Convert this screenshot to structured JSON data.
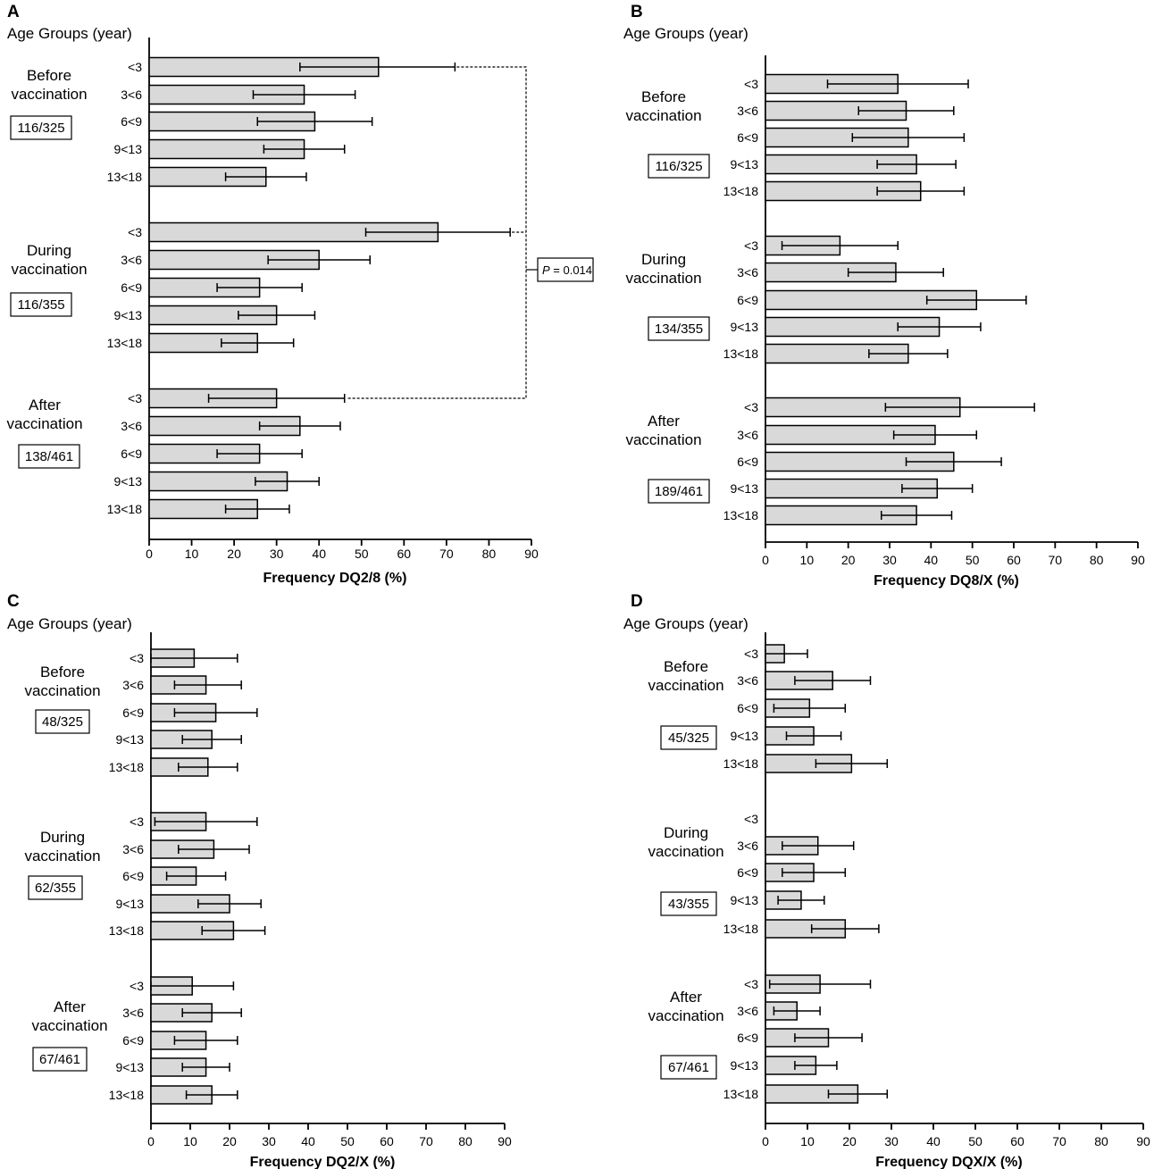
{
  "chart_data": [
    {
      "type": "bar",
      "orientation": "horizontal",
      "panel": "A",
      "ytitle": "Age Groups (year)",
      "xlabel": "Frequency DQ2/8 (%)",
      "xlim": [
        0,
        90
      ],
      "xticks": [
        0,
        10,
        20,
        30,
        40,
        50,
        60,
        70,
        80,
        90
      ],
      "groups": [
        {
          "label": [
            "Before",
            "vaccination"
          ],
          "ratio": "116/325",
          "categories": [
            "<3",
            "3<6",
            "6<9",
            "9<13",
            "13<18"
          ],
          "values": [
            54,
            36.5,
            39,
            36.5,
            27.5
          ],
          "err_low": [
            35.5,
            24.5,
            25.5,
            27,
            18
          ],
          "err_high": [
            72,
            48.5,
            52.5,
            46,
            37
          ]
        },
        {
          "label": [
            "During",
            "vaccination"
          ],
          "ratio": "116/355",
          "categories": [
            "<3",
            "3<6",
            "6<9",
            "9<13",
            "13<18"
          ],
          "values": [
            68,
            40,
            26,
            30,
            25.5
          ],
          "err_low": [
            51,
            28,
            16,
            21,
            17
          ],
          "err_high": [
            85,
            52,
            36,
            39,
            34
          ]
        },
        {
          "label": [
            "After",
            "vaccination"
          ],
          "ratio": "138/461",
          "categories": [
            "<3",
            "3<6",
            "6<9",
            "9<13",
            "13<18"
          ],
          "values": [
            30,
            35.5,
            26,
            32.5,
            25.5
          ],
          "err_low": [
            14,
            26,
            16,
            25,
            18
          ],
          "err_high": [
            46,
            45,
            36,
            40,
            33
          ]
        }
      ],
      "annotation": {
        "p_label": "P",
        "p_value": "= 0.014"
      }
    },
    {
      "type": "bar",
      "orientation": "horizontal",
      "panel": "B",
      "ytitle": "Age Groups (year)",
      "xlabel": "Frequency DQ8/X (%)",
      "xlim": [
        0,
        90
      ],
      "xticks": [
        0,
        10,
        20,
        30,
        40,
        50,
        60,
        70,
        80,
        90
      ],
      "groups": [
        {
          "label": [
            "Before",
            "vaccination"
          ],
          "ratio": "116/325",
          "categories": [
            "<3",
            "3<6",
            "6<9",
            "9<13",
            "13<18"
          ],
          "values": [
            32,
            34,
            34.5,
            36.5,
            37.5
          ],
          "err_low": [
            15,
            22.5,
            21,
            27,
            27
          ],
          "err_high": [
            49,
            45.5,
            48,
            46,
            48
          ]
        },
        {
          "label": [
            "During",
            "vaccination"
          ],
          "ratio": "134/355",
          "categories": [
            "<3",
            "3<6",
            "6<9",
            "9<13",
            "13<18"
          ],
          "values": [
            18,
            31.5,
            51,
            42,
            34.5
          ],
          "err_low": [
            4,
            20,
            39,
            32,
            25
          ],
          "err_high": [
            32,
            43,
            63,
            52,
            44
          ]
        },
        {
          "label": [
            "After",
            "vaccination"
          ],
          "ratio": "189/461",
          "categories": [
            "<3",
            "3<6",
            "6<9",
            "9<13",
            "13<18"
          ],
          "values": [
            47,
            41,
            45.5,
            41.5,
            36.5
          ],
          "err_low": [
            29,
            31,
            34,
            33,
            28
          ],
          "err_high": [
            65,
            51,
            57,
            50,
            45
          ]
        }
      ]
    },
    {
      "type": "bar",
      "orientation": "horizontal",
      "panel": "C",
      "ytitle": "Age Groups (year)",
      "xlabel": "Frequency DQ2/X (%)",
      "xlim": [
        0,
        90
      ],
      "xticks": [
        0,
        10,
        20,
        30,
        40,
        50,
        60,
        70,
        80,
        90
      ],
      "groups": [
        {
          "label": [
            "Before",
            "vaccination"
          ],
          "ratio": "48/325",
          "categories": [
            "<3",
            "3<6",
            "6<9",
            "9<13",
            "13<18"
          ],
          "values": [
            11,
            14,
            16.5,
            15.5,
            14.5
          ],
          "err_low": [
            0,
            6,
            6,
            8,
            7
          ],
          "err_high": [
            22,
            23,
            27,
            23,
            22
          ]
        },
        {
          "label": [
            "During",
            "vaccination"
          ],
          "ratio": "62/355",
          "categories": [
            "<3",
            "3<6",
            "6<9",
            "9<13",
            "13<18"
          ],
          "values": [
            14,
            16,
            11.5,
            20,
            21
          ],
          "err_low": [
            1,
            7,
            4,
            12,
            13
          ],
          "err_high": [
            27,
            25,
            19,
            28,
            29
          ]
        },
        {
          "label": [
            "After",
            "vaccination"
          ],
          "ratio": "67/461",
          "categories": [
            "<3",
            "3<6",
            "6<9",
            "9<13",
            "13<18"
          ],
          "values": [
            10.5,
            15.5,
            14,
            14,
            15.5
          ],
          "err_low": [
            0,
            8,
            6,
            8,
            9
          ],
          "err_high": [
            21,
            23,
            22,
            20,
            22
          ]
        }
      ]
    },
    {
      "type": "bar",
      "orientation": "horizontal",
      "panel": "D",
      "ytitle": "Age Groups (year)",
      "xlabel": "Frequency DQX/X (%)",
      "xlim": [
        0,
        90
      ],
      "xticks": [
        0,
        10,
        20,
        30,
        40,
        50,
        60,
        70,
        80,
        90
      ],
      "groups": [
        {
          "label": [
            "Before",
            "vaccination"
          ],
          "ratio": "45/325",
          "categories": [
            "<3",
            "3<6",
            "6<9",
            "9<13",
            "13<18"
          ],
          "values": [
            4.5,
            16,
            10.5,
            11.5,
            20.5
          ],
          "err_low": [
            0,
            7,
            2,
            5,
            12
          ],
          "err_high": [
            10,
            25,
            19,
            18,
            29
          ]
        },
        {
          "label": [
            "During",
            "vaccination"
          ],
          "ratio": "43/355",
          "categories": [
            "<3",
            "3<6",
            "6<9",
            "9<13",
            "13<18"
          ],
          "values": [
            null,
            12.5,
            11.5,
            8.5,
            19
          ],
          "err_low": [
            null,
            4,
            4,
            3,
            11
          ],
          "err_high": [
            null,
            21,
            19,
            14,
            27
          ]
        },
        {
          "label": [
            "After",
            "vaccination"
          ],
          "ratio": "67/461",
          "categories": [
            "<3",
            "3<6",
            "6<9",
            "9<13",
            "13<18"
          ],
          "values": [
            13,
            7.5,
            15,
            12,
            22
          ],
          "err_low": [
            1,
            2,
            7,
            7,
            15
          ],
          "err_high": [
            25,
            13,
            23,
            17,
            29
          ]
        }
      ]
    }
  ]
}
